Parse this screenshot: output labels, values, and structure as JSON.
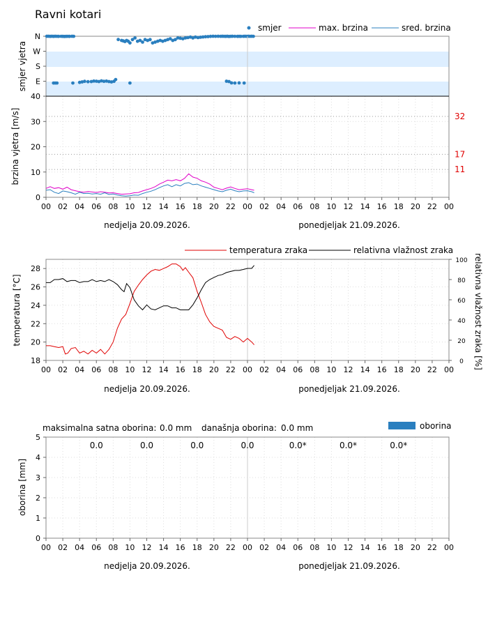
{
  "title": "Ravni kotari",
  "x_ticks": [
    "00",
    "02",
    "04",
    "06",
    "08",
    "10",
    "12",
    "14",
    "16",
    "18",
    "20",
    "22",
    "00",
    "02",
    "04",
    "06",
    "08",
    "10",
    "12",
    "14",
    "16",
    "18",
    "20",
    "22",
    "00"
  ],
  "day_labels": [
    "nedjelja  20.09.2026.",
    "ponedjeljak  21.09.2026."
  ],
  "colors": {
    "direction": "#2a7fbf",
    "max_speed": "#e000c8",
    "mean_speed": "#2a7fbf",
    "temperature": "#e00000",
    "humidity": "#000000",
    "precip": "#2a7fbf",
    "thresholds": "#e00000",
    "band": "#ddeeff"
  },
  "chart_data": [
    {
      "type": "scatter",
      "ylabel": "smjer vjetra",
      "y_ticks": [
        "N",
        "W",
        "S",
        "E"
      ],
      "x_unit": "hours from 00:00 20.09.2026",
      "xlim": [
        0,
        48
      ],
      "series": [
        {
          "name": "smjer",
          "x": [
            0.1,
            0.3,
            0.5,
            0.7,
            0.9,
            1.1,
            1.3,
            1.5,
            1.8,
            2.0,
            2.2,
            2.4,
            2.6,
            2.8,
            3.1,
            3.3,
            4.0,
            4.3,
            4.6,
            5.0,
            5.4,
            5.7,
            6.0,
            6.3,
            6.6,
            6.9,
            7.2,
            7.5,
            7.8,
            8.1,
            8.3,
            8.6,
            9.0,
            9.2,
            9.4,
            9.6,
            9.8,
            10.0,
            10.3,
            10.6,
            10.9,
            11.2,
            11.5,
            11.8,
            12.1,
            12.4,
            12.7,
            13.0,
            13.3,
            13.6,
            13.9,
            14.2,
            14.5,
            14.8,
            15.1,
            15.4,
            15.7,
            16.0,
            16.3,
            16.6,
            16.9,
            17.2,
            17.5,
            17.8,
            18.1,
            18.4,
            18.7,
            19.0,
            19.3,
            19.6,
            19.9,
            20.2,
            20.5,
            20.8,
            21.0,
            21.2,
            21.4,
            21.6,
            21.8,
            22.0,
            22.2,
            22.5,
            22.8,
            23.0,
            23.2,
            23.5,
            23.7,
            23.9,
            24.1,
            24.3,
            24.5,
            24.7,
            21.5,
            21.8,
            22.1,
            22.5,
            23.0,
            23.6,
            0.9,
            1.1,
            1.3,
            3.2,
            10.0
          ],
          "y_deg": [
            0,
            0,
            3,
            0,
            4,
            0,
            2,
            4,
            2,
            4,
            5,
            3,
            2,
            4,
            0,
            2,
            97,
            94,
            91,
            93,
            92,
            89,
            90,
            92,
            88,
            91,
            89,
            92,
            94,
            91,
            80,
            79,
            -25,
            -28,
            -32,
            -25,
            -30,
            -40,
            -20,
            -10,
            -30,
            -25,
            -35,
            -20,
            -25,
            -20,
            -40,
            -35,
            -30,
            -25,
            -30,
            -25,
            -20,
            -15,
            -25,
            -20,
            -10,
            -12,
            -15,
            -10,
            -8,
            -5,
            -10,
            -5,
            -8,
            -6,
            -4,
            -3,
            -2,
            -1,
            0,
            1,
            0,
            2,
            0,
            1,
            3,
            0,
            5,
            2,
            0,
            2,
            4,
            1,
            4,
            2,
            0,
            1,
            0,
            2,
            0,
            1,
            90,
            92,
            100,
            101,
            100,
            101,
            101,
            101,
            101,
            101,
            101
          ]
        }
      ]
    },
    {
      "type": "line",
      "ylabel": "brzina vjetra [m/s]",
      "ylim": [
        0,
        40
      ],
      "y_ticks": [
        "0",
        "10",
        "20",
        "30",
        "40"
      ],
      "thresholds": [
        32,
        17,
        11
      ],
      "x_unit": "hours from 00:00 20.09.2026",
      "xlim": [
        0,
        48
      ],
      "series": [
        {
          "name": "max. brzina",
          "x": [
            0,
            0.5,
            1,
            1.5,
            2,
            2.5,
            3,
            3.5,
            4,
            4.5,
            5,
            5.5,
            6,
            6.5,
            7,
            7.5,
            8,
            8.5,
            9,
            9.5,
            10,
            10.5,
            11,
            11.5,
            12,
            12.5,
            13,
            13.5,
            14,
            14.5,
            15,
            15.5,
            16,
            16.5,
            17,
            17.5,
            18,
            18.5,
            19,
            19.5,
            20,
            20.5,
            21,
            21.5,
            22,
            22.5,
            23,
            23.5,
            24,
            24.5,
            24.8
          ],
          "y": [
            3.5,
            4.2,
            3.5,
            3.8,
            3.2,
            4.0,
            3.0,
            2.6,
            2.2,
            2.0,
            2.3,
            2.1,
            1.9,
            2.2,
            2.0,
            1.7,
            1.8,
            1.5,
            1.2,
            1.3,
            1.4,
            1.8,
            1.9,
            2.5,
            3.0,
            3.5,
            4.2,
            5.2,
            6.0,
            6.8,
            6.5,
            7.0,
            6.5,
            7.5,
            9.3,
            8.0,
            7.5,
            6.5,
            6.0,
            5.2,
            4.0,
            3.5,
            3.0,
            3.6,
            4.1,
            3.5,
            3.0,
            3.2,
            3.4,
            3.0,
            2.8
          ]
        },
        {
          "name": "sred. brzina",
          "x": [
            0,
            0.5,
            1,
            1.5,
            2,
            2.5,
            3,
            3.5,
            4,
            4.5,
            5,
            5.5,
            6,
            6.5,
            7,
            7.5,
            8,
            8.5,
            9,
            9.5,
            10,
            10.5,
            11,
            11.5,
            12,
            12.5,
            13,
            13.5,
            14,
            14.5,
            15,
            15.5,
            16,
            16.5,
            17,
            17.5,
            18,
            18.5,
            19,
            19.5,
            20,
            20.5,
            21,
            21.5,
            22,
            22.5,
            23,
            23.5,
            24,
            24.5,
            24.8
          ],
          "y": [
            2.8,
            3.0,
            2.0,
            1.5,
            2.5,
            2.2,
            1.8,
            1.2,
            2.0,
            1.5,
            1.6,
            1.3,
            1.5,
            1.2,
            1.8,
            1.1,
            1.3,
            0.9,
            0.6,
            0.5,
            0.6,
            0.9,
            0.8,
            1.5,
            2.0,
            2.4,
            3.0,
            3.8,
            4.5,
            5.0,
            4.2,
            5.0,
            4.5,
            5.5,
            5.8,
            5.0,
            5.2,
            4.5,
            4.0,
            3.5,
            3.0,
            2.5,
            2.2,
            2.8,
            3.2,
            2.6,
            2.2,
            2.5,
            2.6,
            2.2,
            1.8
          ]
        }
      ]
    },
    {
      "type": "line",
      "ylabel": "temperatura [°C]",
      "ylabel_right": "relativna vlažnost zraka [%]",
      "ylim": [
        18,
        29
      ],
      "y_ticks": [
        "18",
        "20",
        "22",
        "24",
        "26",
        "28"
      ],
      "ylim_right": [
        0,
        100
      ],
      "y_ticks_right": [
        "0",
        "20",
        "40",
        "60",
        "80",
        "100"
      ],
      "x_unit": "hours from 00:00 20.09.2026",
      "xlim": [
        0,
        48
      ],
      "series": [
        {
          "name": "temperatura zraka",
          "axis": "left",
          "x": [
            0,
            0.5,
            1,
            1.5,
            2,
            2.3,
            2.6,
            3,
            3.5,
            4,
            4.5,
            5,
            5.5,
            6,
            6.5,
            7,
            7.5,
            8,
            8.5,
            9,
            9.5,
            10,
            10.5,
            11,
            11.5,
            12,
            12.5,
            13,
            13.5,
            14,
            14.5,
            15,
            15.5,
            16,
            16.3,
            16.6,
            17,
            17.5,
            18,
            18.5,
            19,
            19.5,
            20,
            20.5,
            21,
            21.5,
            22,
            22.5,
            23,
            23.5,
            24,
            24.5,
            24.8
          ],
          "y": [
            19.6,
            19.6,
            19.5,
            19.4,
            19.5,
            18.7,
            18.8,
            19.3,
            19.4,
            18.8,
            19.0,
            18.7,
            19.1,
            18.8,
            19.2,
            18.7,
            19.2,
            20.0,
            21.5,
            22.5,
            23.0,
            24.2,
            25.5,
            26.2,
            26.8,
            27.3,
            27.7,
            27.9,
            27.8,
            28.0,
            28.2,
            28.5,
            28.5,
            28.2,
            27.8,
            28.1,
            27.6,
            27.0,
            25.5,
            24.3,
            23.0,
            22.2,
            21.7,
            21.5,
            21.3,
            20.5,
            20.3,
            20.6,
            20.4,
            20.0,
            20.4,
            20.0,
            19.7
          ]
        },
        {
          "name": "relativna vlažnost zraka",
          "axis": "right",
          "x": [
            0,
            0.5,
            1,
            1.5,
            2,
            2.5,
            3,
            3.5,
            4,
            4.5,
            5,
            5.5,
            6,
            6.5,
            7,
            7.5,
            8,
            8.5,
            9,
            9.3,
            9.6,
            10,
            10.5,
            11,
            11.5,
            12,
            12.5,
            13,
            13.5,
            14,
            14.5,
            15,
            15.5,
            16,
            16.5,
            17,
            17.5,
            18,
            18.5,
            19,
            19.5,
            20,
            20.5,
            21,
            21.5,
            22,
            22.5,
            23,
            23.5,
            24,
            24.5,
            24.8
          ],
          "y": [
            77,
            77,
            80,
            80,
            81,
            78,
            79,
            79,
            77,
            78,
            78,
            80,
            78,
            79,
            78,
            80,
            78,
            75,
            70,
            68,
            76,
            72,
            60,
            54,
            50,
            55,
            51,
            50,
            52,
            54,
            54,
            52,
            52,
            50,
            50,
            50,
            55,
            62,
            70,
            77,
            80,
            82,
            84,
            85,
            87,
            88,
            89,
            89,
            90,
            91,
            91,
            94
          ]
        }
      ]
    },
    {
      "type": "bar",
      "ylabel": "oborina [mm]",
      "ylim": [
        0,
        5
      ],
      "y_ticks": [
        "0",
        "1",
        "2",
        "3",
        "4",
        "5"
      ],
      "series": [
        {
          "name": "oborina",
          "values": []
        }
      ],
      "summary": {
        "max_label": "maksimalna satna oborina:",
        "max_value": "0.0 mm",
        "today_label": "današnja oborina:",
        "today_value": "0.0 mm"
      },
      "period_totals": [
        "0.0",
        "0.0",
        "0.0",
        "0.0",
        "0.0*",
        "0.0*",
        "0.0*"
      ]
    }
  ]
}
